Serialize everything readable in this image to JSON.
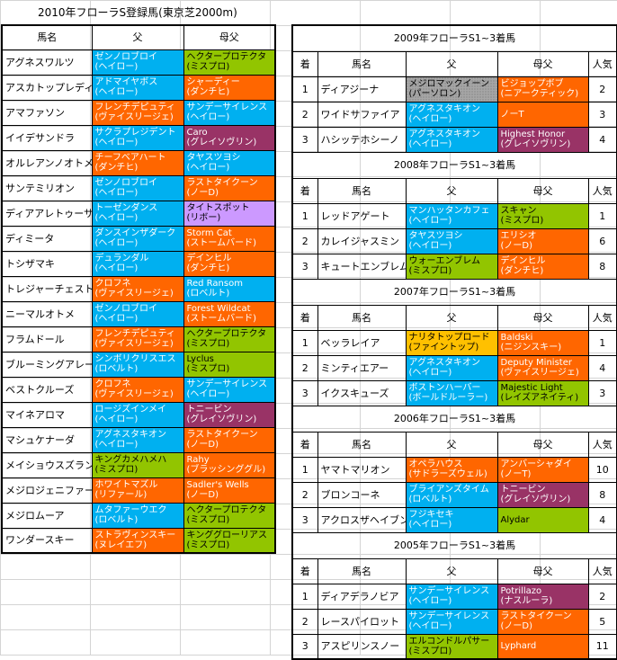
{
  "sheet_title": "2010年フローラS登録馬(東京芝2000m)",
  "colors": {
    "cyan": "#00b0f0",
    "orange": "#ff6600",
    "green": "#92c500",
    "purple": "#993366",
    "lavender": "#cc99ff",
    "yellow": "#ffc000",
    "gray": "#a6a6a6"
  },
  "left_table": {
    "headers": [
      "馬名",
      "父",
      "母父"
    ],
    "rows": [
      {
        "name": "アグネスワルツ",
        "sire": [
          "ゼンノロブロイ",
          "(ヘイロー)"
        ],
        "bms": [
          "ヘクタープロテクタ",
          "(ミスプロ)"
        ],
        "sc": "cyan",
        "bc": "grn"
      },
      {
        "name": "アスカトップレディ",
        "sire": [
          "アドマイヤボス",
          "(ヘイロー)"
        ],
        "bms": [
          "シャーディー",
          "(ダンチヒ)"
        ],
        "sc": "cyan",
        "bc": "org"
      },
      {
        "name": "アマファソン",
        "sire": [
          "フレンチデピュティ",
          "(ヴァイスリージェ)"
        ],
        "bms": [
          "サンデーサイレンス",
          "(ヘイロー)"
        ],
        "sc": "org",
        "bc": "cyan"
      },
      {
        "name": "イイデサンドラ",
        "sire": [
          "サクラプレジデント",
          "(ヘイロー)"
        ],
        "bms": [
          "Caro",
          "(グレイソヴリン)"
        ],
        "sc": "cyan",
        "bc": "pur"
      },
      {
        "name": "オルレアンノオトメ",
        "sire": [
          "チーフベアハート",
          "(ダンチヒ)"
        ],
        "bms": [
          "タヤスツヨシ",
          "(ヘイロー)"
        ],
        "sc": "org",
        "bc": "cyan"
      },
      {
        "name": "サンテミリオン",
        "sire": [
          "ゼンノロブロイ",
          "(ヘイロー)"
        ],
        "bms": [
          "ラストタイクーン",
          "(ノーD)"
        ],
        "sc": "cyan",
        "bc": "org"
      },
      {
        "name": "ディアアレトゥーサ",
        "sire": [
          "トーゼンダンス",
          "(ヘイロー)"
        ],
        "bms": [
          "タイトスポット",
          "(リボー)"
        ],
        "sc": "cyan",
        "bc": "lav"
      },
      {
        "name": "ディミータ",
        "sire": [
          "ダンスインザダーク",
          "(ヘイロー)"
        ],
        "bms": [
          "Storm Cat",
          "(ストームバード)"
        ],
        "sc": "cyan",
        "bc": "org"
      },
      {
        "name": "トシザマキ",
        "sire": [
          "デュランダル",
          "(ヘイロー)"
        ],
        "bms": [
          "デインヒル",
          "(ダンチヒ)"
        ],
        "sc": "cyan",
        "bc": "org"
      },
      {
        "name": "トレジャーチェスト",
        "sire": [
          "クロフネ",
          "(ヴァイスリージェ)"
        ],
        "bms": [
          "Red Ransom",
          "(ロベルト)"
        ],
        "sc": "org",
        "bc": "cyan"
      },
      {
        "name": "ニーマルオトメ",
        "sire": [
          "ゼンノロブロイ",
          "(ヘイロー)"
        ],
        "bms": [
          "Forest Wildcat",
          "(ストームバード)"
        ],
        "sc": "cyan",
        "bc": "org"
      },
      {
        "name": "フラムドール",
        "sire": [
          "フレンチデピュティ",
          "(ヴァイスリージェ)"
        ],
        "bms": [
          "ヘクタープロテクタ",
          "(ミスプロ)"
        ],
        "sc": "org",
        "bc": "grn"
      },
      {
        "name": "ブルーミングアレー",
        "sire": [
          "シンボリクリスエス",
          "(ロベルト)"
        ],
        "bms": [
          "Lyclus",
          "(ミスプロ)"
        ],
        "sc": "cyan",
        "bc": "grn"
      },
      {
        "name": "ベストクルーズ",
        "sire": [
          "クロフネ",
          "(ヴァイスリージェ)"
        ],
        "bms": [
          "サンデーサイレンス",
          "(ヘイロー)"
        ],
        "sc": "org",
        "bc": "cyan"
      },
      {
        "name": "マイネアロマ",
        "sire": [
          "ロージズインメイ",
          "(ヘイロー)"
        ],
        "bms": [
          "トニービン",
          "(グレイソヴリン)"
        ],
        "sc": "cyan",
        "bc": "pur"
      },
      {
        "name": "マシュケナーダ",
        "sire": [
          "アグネスタキオン",
          "(ヘイロー)"
        ],
        "bms": [
          "ラストタイクーン",
          "(ノーD)"
        ],
        "sc": "cyan",
        "bc": "org"
      },
      {
        "name": "メイショウスズラン",
        "sire": [
          "キングカメハメハ",
          "(ミスプロ)"
        ],
        "bms": [
          "Rahy",
          "(ブラッシンググル)"
        ],
        "sc": "grn",
        "bc": "org"
      },
      {
        "name": "メジロジェニファー",
        "sire": [
          "ホワイトマズル",
          "(リファール)"
        ],
        "bms": [
          "Sadler's Wells",
          "(ノーD)"
        ],
        "sc": "org",
        "bc": "org"
      },
      {
        "name": "メジロムーア",
        "sire": [
          "ムタファーウエク",
          "(ロベルト)"
        ],
        "bms": [
          "ヘクタープロテクタ",
          "(ミスプロ)"
        ],
        "sc": "cyan",
        "bc": "grn"
      },
      {
        "name": "ワンダースキー",
        "sire": [
          "ストラヴィンスキー",
          "(ヌレイエフ)"
        ],
        "bms": [
          "キンググローリアス",
          "(ミスプロ)"
        ],
        "sc": "org",
        "bc": "grn"
      }
    ]
  },
  "right_table": {
    "headers": [
      "着",
      "馬名",
      "父",
      "母父",
      "人気"
    ],
    "sections": [
      {
        "caption": "2009年フローラS1~3着馬",
        "rows": [
          {
            "pos": "1",
            "name": "ディアジーナ",
            "sire": [
              "メジロマックイーン",
              "(パーソロン)"
            ],
            "bms": [
              "ビジョップボブ",
              "(ニアークティック)"
            ],
            "pop": "2",
            "sc": "gry",
            "bc": "org"
          },
          {
            "pos": "2",
            "name": "ワイドサファイア",
            "sire": [
              "アグネスタキオン",
              "(ヘイロー)"
            ],
            "bms": [
              "ノーT",
              ""
            ],
            "pop": "3",
            "sc": "cyan",
            "bc": "org"
          },
          {
            "pos": "3",
            "name": "ハシッテホシーノ",
            "sire": [
              "アグネスタキオン",
              "(ヘイロー)"
            ],
            "bms": [
              "Highest Honor",
              "(グレイソヴリン)"
            ],
            "pop": "4",
            "sc": "cyan",
            "bc": "pur"
          }
        ]
      },
      {
        "caption": "2008年フローラS1~3着馬",
        "rows": [
          {
            "pos": "1",
            "name": "レッドアゲート",
            "sire": [
              "マンハッタンカフェ",
              "(ヘイロー)"
            ],
            "bms": [
              "スキャン",
              "(ミスプロ)"
            ],
            "pop": "1",
            "sc": "cyan",
            "bc": "grn"
          },
          {
            "pos": "2",
            "name": "カレイジャスミン",
            "sire": [
              "タヤスツヨシ",
              "(ヘイロー)"
            ],
            "bms": [
              "エリシオ",
              "(ノーD)"
            ],
            "pop": "6",
            "sc": "cyan",
            "bc": "org"
          },
          {
            "pos": "3",
            "name": "キュートエンブレム",
            "sire": [
              "ウォーエンブレム",
              "(ミスプロ)"
            ],
            "bms": [
              "デインヒル",
              "(ダンチヒ)"
            ],
            "pop": "8",
            "sc": "grn",
            "bc": "org"
          }
        ]
      },
      {
        "caption": "2007年フローラS1~3着馬",
        "rows": [
          {
            "pos": "1",
            "name": "ベッラレイア",
            "sire": [
              "ナリタトップロード",
              "(ファイントップ)"
            ],
            "bms": [
              "Baldski",
              "(ニジンスキー)"
            ],
            "pop": "1",
            "sc": "ylw",
            "bc": "org"
          },
          {
            "pos": "2",
            "name": "ミンティエアー",
            "sire": [
              "アグネスタキオン",
              "(ヘイロー)"
            ],
            "bms": [
              "Deputy Minister",
              "(ヴァイスリージェ)"
            ],
            "pop": "4",
            "sc": "cyan",
            "bc": "org"
          },
          {
            "pos": "3",
            "name": "イクスキューズ",
            "sire": [
              "ボストンハーバー",
              "(ボールドルーラー)"
            ],
            "bms": [
              "Majestic Light",
              "(レイズアネイティ)"
            ],
            "pop": "3",
            "sc": "cyan",
            "bc": "grn"
          }
        ]
      },
      {
        "caption": "2006年フローラS1~3着馬",
        "rows": [
          {
            "pos": "1",
            "name": "ヤマトマリオン",
            "sire": [
              "オペラハウス",
              "(サドラーズウェル)"
            ],
            "bms": [
              "アンバーシャダイ",
              "(ノーT)"
            ],
            "pop": "10",
            "sc": "org",
            "bc": "org"
          },
          {
            "pos": "2",
            "name": "ブロンコーネ",
            "sire": [
              "ブライアンズタイム",
              "(ロベルト)"
            ],
            "bms": [
              "トニービン",
              "(グレイソヴリン)"
            ],
            "pop": "8",
            "sc": "cyan",
            "bc": "pur"
          },
          {
            "pos": "3",
            "name": "アクロスザヘイブン",
            "sire": [
              "フジキセキ",
              "(ヘイロー)"
            ],
            "bms": [
              "Alydar",
              ""
            ],
            "pop": "4",
            "sc": "cyan",
            "bc": "grn"
          }
        ]
      },
      {
        "caption": "2005年フローラS1~3着馬",
        "rows": [
          {
            "pos": "1",
            "name": "ディアデラノビア",
            "sire": [
              "サンデーサイレンス",
              "(ヘイロー)"
            ],
            "bms": [
              "Potrillazo",
              "(ナスルーラ)"
            ],
            "pop": "2",
            "sc": "cyan",
            "bc": "pur"
          },
          {
            "pos": "2",
            "name": "レースパイロット",
            "sire": [
              "サンデーサイレンス",
              "(ヘイロー)"
            ],
            "bms": [
              "ラストタイクーン",
              "(ノーD)"
            ],
            "pop": "5",
            "sc": "cyan",
            "bc": "org"
          },
          {
            "pos": "3",
            "name": "アスピリンスノー",
            "sire": [
              "エルコンドルパサー",
              "(ミスプロ)"
            ],
            "bms": [
              "Lyphard",
              ""
            ],
            "pop": "11",
            "sc": "grn",
            "bc": "org"
          }
        ]
      }
    ]
  }
}
